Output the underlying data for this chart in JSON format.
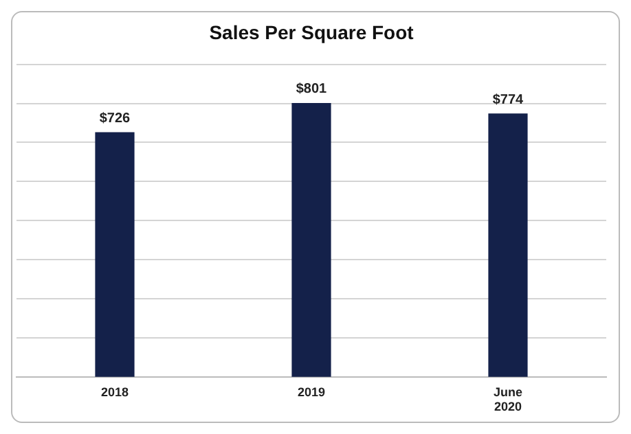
{
  "chart_data": {
    "type": "bar",
    "title": "Sales Per Square Foot",
    "categories": [
      "2018",
      "2019",
      "June 2020"
    ],
    "values": [
      726,
      801,
      774
    ],
    "value_labels": [
      "$726",
      "$801",
      "$774"
    ],
    "color": "#14214a",
    "ylim": [
      100,
      900
    ],
    "yticks": [
      {
        "value": 100,
        "label": null
      },
      {
        "value": 200,
        "label": null
      },
      {
        "value": 300,
        "label": null
      },
      {
        "value": 400,
        "label": null
      },
      {
        "value": 500,
        "label": null
      },
      {
        "value": 600,
        "label": null
      },
      {
        "value": 700,
        "label": null
      },
      {
        "value": 800,
        "label": null
      },
      {
        "value": 900,
        "label": null
      }
    ],
    "tick_labels": "x",
    "grid": "y"
  }
}
